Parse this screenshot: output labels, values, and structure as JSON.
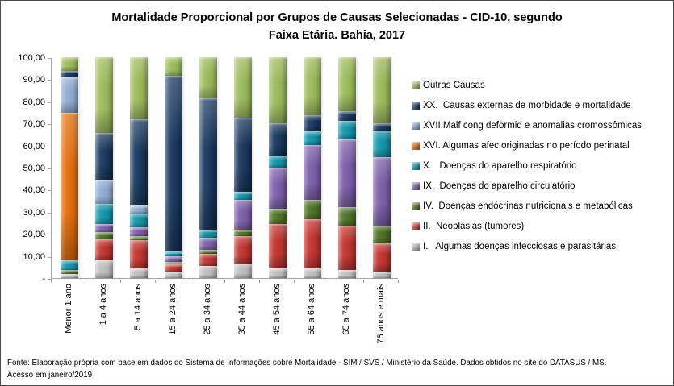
{
  "title": {
    "line1": "Mortalidade Proporcional por Grupos de Causas Selecionadas - CID-10, segundo",
    "line2": "Faixa Etária. Bahia, 2017"
  },
  "footer": {
    "line1": "Fonte: Elaboração própria com base em dados do  Sistema de Informações sobre Mortalidade - SIM / SVS / Ministério da Saúde. Dados obtidos no site do DATASUS / MS.",
    "line2": "Acesso em janeiro/2019"
  },
  "chart_data": {
    "type": "bar",
    "variant": "stacked-100-percent",
    "title": "Mortalidade Proporcional por Grupos de Causas Selecionadas - CID-10, segundo Faixa Etária. Bahia, 2017",
    "grid": false,
    "legend_position": "right",
    "y_axis": {
      "min": 0,
      "max": 100,
      "tick_labels_top_to_bottom": [
        "100,00",
        "90,00",
        "80,00",
        "70,00",
        "60,00",
        "50,00",
        "40,00",
        "30,00",
        "20,00",
        "10,00",
        "-"
      ]
    },
    "categories": [
      "Menor 1 ano",
      "1 a 4 anos",
      "5 a 14 anos",
      "15 a 24 anos",
      "25 a 34 anos",
      "35 a 44 anos",
      "45 a 54 anos",
      "55 a 64 anos",
      "65 a 74 anos",
      "75 anos e mais"
    ],
    "series_stack_order": "bottom_to_top",
    "series": [
      {
        "name": "I. Algumas doenças infecciosas e parasitárias",
        "legend_label": "I.   Algumas doenças infecciosas e parasitárias",
        "color": "#BFBFBF",
        "values": [
          1.8,
          7.9,
          4.3,
          3.0,
          5.5,
          6.5,
          4.3,
          4.5,
          3.6,
          3.0
        ]
      },
      {
        "name": "II. Neoplasias (tumores)",
        "legend_label": "II.  Neoplasias (tumores)",
        "color": "#C0322C",
        "values": [
          0,
          9.7,
          12.7,
          3.1,
          5.4,
          12.6,
          20.0,
          22.3,
          20.1,
          12.8
        ]
      },
      {
        "name": "IV. Doenças endócrinas nutricionais e metabólicas",
        "legend_label": "IV.  Doenças endócrinas nutricionais e metabólicas",
        "color": "#4C7022",
        "values": [
          1.8,
          3.1,
          1.9,
          1.2,
          1.9,
          2.8,
          7.0,
          8.5,
          8.3,
          7.9
        ]
      },
      {
        "name": "IX. Doenças do aparelho circulatório",
        "legend_label": "IX.  Doenças do aparelho circulatório",
        "color": "#7A5DA8",
        "values": [
          0,
          3.6,
          4.2,
          2.4,
          5.4,
          13.4,
          18.6,
          24.9,
          30.7,
          31.0
        ]
      },
      {
        "name": "X. Doenças do aparelho respiratório",
        "legend_label": "X.   Doenças do aparelho respiratório",
        "color": "#0F93A8",
        "values": [
          4.3,
          9.4,
          6.1,
          2.5,
          3.7,
          3.9,
          5.5,
          6.1,
          8.5,
          12.2
        ]
      },
      {
        "name": "XVI. Algumas afec originadas no período perinatal",
        "legend_label": "XVI. Algumas afec originadas no período perinatal",
        "color": "#E36C0A",
        "values": [
          66.9,
          0,
          0,
          0,
          0,
          0,
          0,
          0,
          0,
          0
        ]
      },
      {
        "name": "XVII. Malf cong deformid e anomalias cromossômicas",
        "legend_label": "XVII.Malf cong deformid e anomalias cromossômicas",
        "color": "#8FABD2",
        "values": [
          16.1,
          10.7,
          3.6,
          0,
          0,
          0,
          0,
          0,
          0,
          0
        ]
      },
      {
        "name": "XX. Causas externas de morbidade e mortalidade",
        "legend_label": "XX.  Causas externas de morbidade e mortalidade",
        "color": "#16365C",
        "values": [
          2.8,
          21.3,
          39.2,
          79.3,
          59.6,
          33.4,
          14.8,
          7.3,
          4.2,
          3.1
        ]
      },
      {
        "name": "Outras Causas",
        "legend_label": "Outras Causas",
        "color": "#9BBB59",
        "values": [
          6.3,
          34.3,
          28.0,
          8.5,
          18.5,
          27.4,
          29.8,
          26.4,
          24.6,
          30.0
        ]
      }
    ]
  },
  "colors": {
    "axis": "#A6A6A6",
    "background": "#FFFFFF",
    "border": "#4A4A4A",
    "text": "#000000"
  }
}
